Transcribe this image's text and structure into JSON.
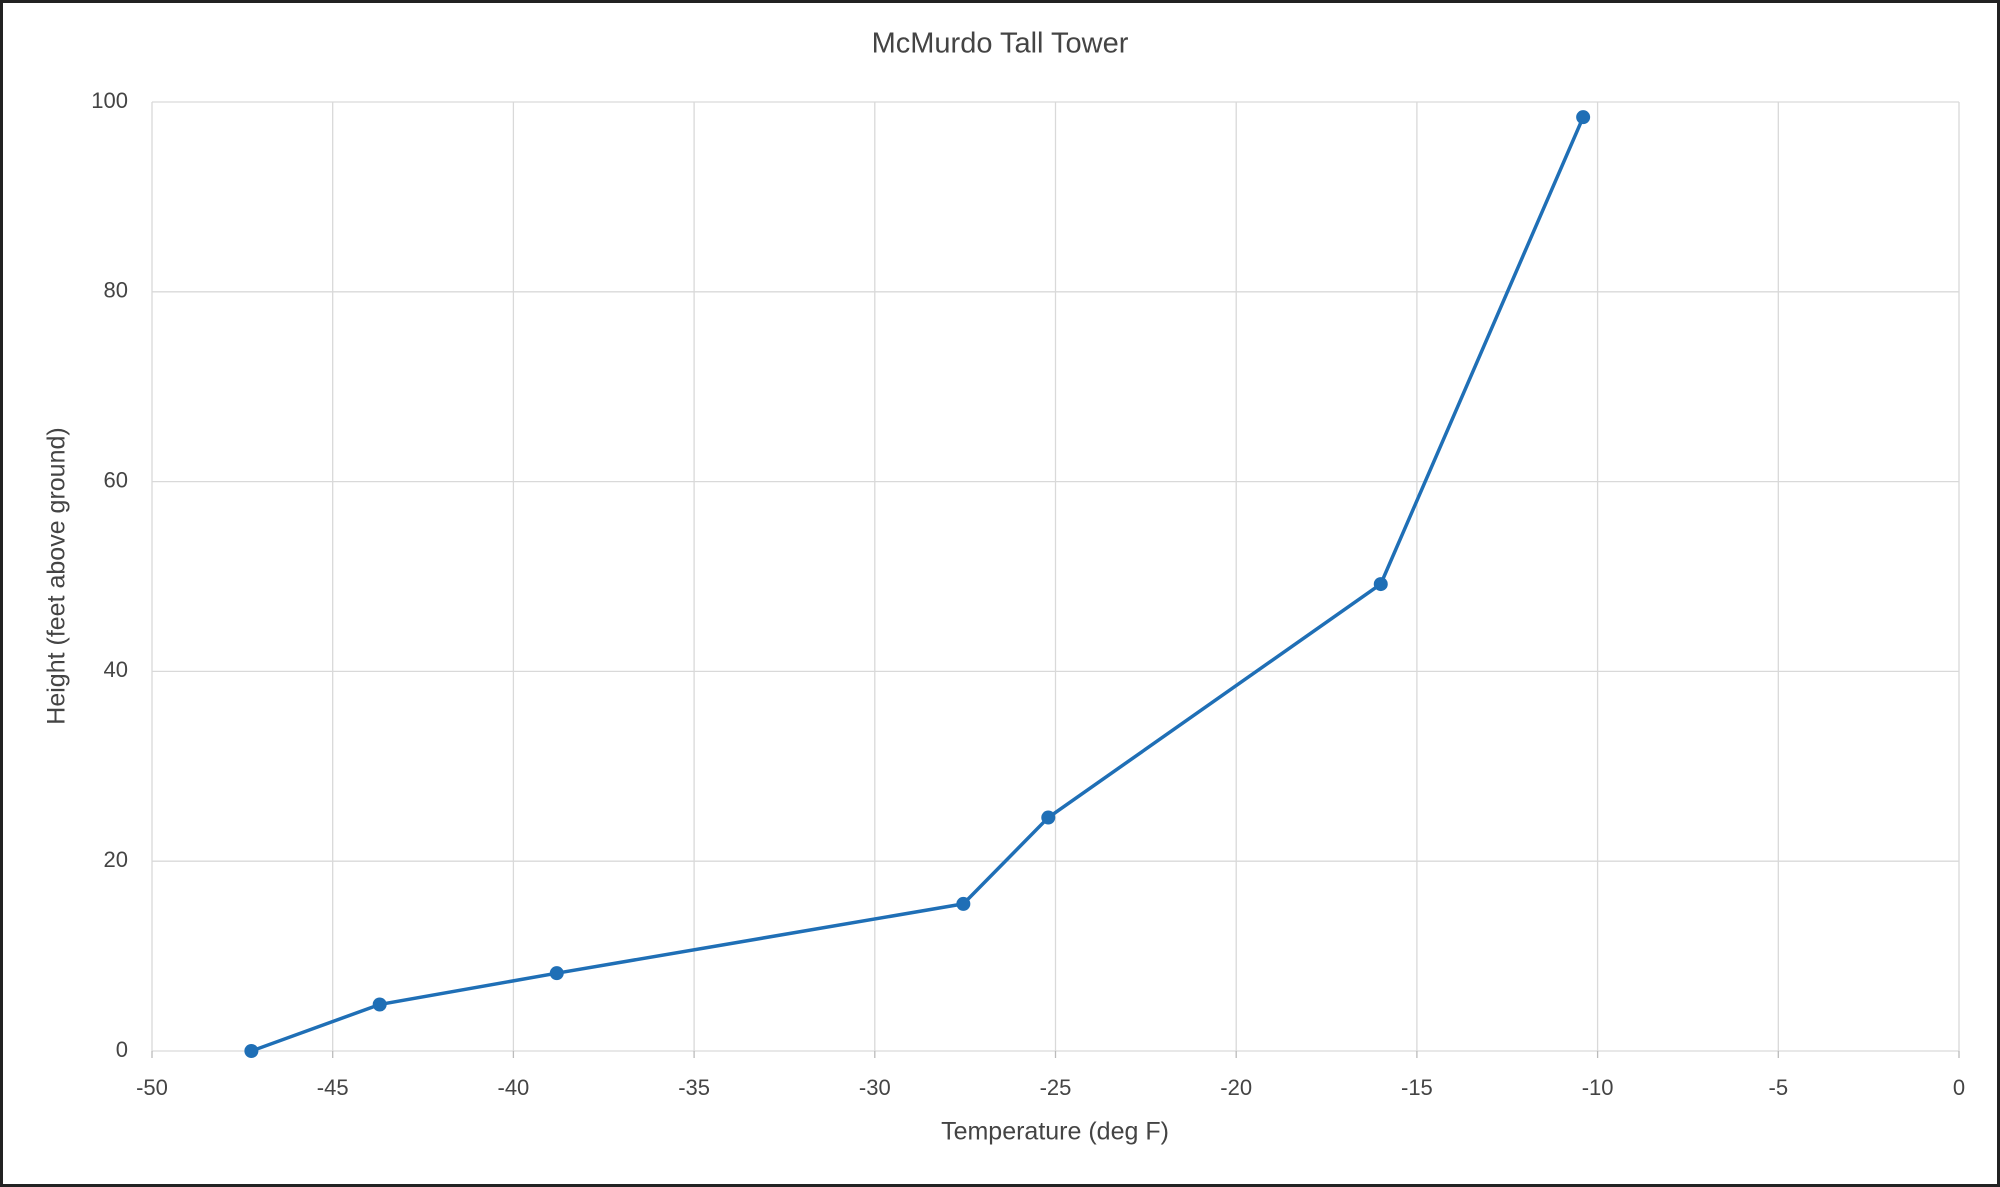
{
  "chart_data": {
    "type": "line",
    "title": "McMurdo Tall Tower",
    "x_label": "Temperature (deg F)",
    "y_label": "Height (feet above ground)",
    "x": [
      -47.25,
      -43.7,
      -38.8,
      -27.55,
      -25.2,
      -16.0,
      -10.4
    ],
    "values": [
      0,
      4.9,
      8.2,
      15.5,
      24.6,
      49.2,
      98.4
    ],
    "color": "#1f6fb6",
    "markers": true,
    "xlim": [
      -50,
      0
    ],
    "xticks": [
      -50,
      -45,
      -40,
      -35,
      -30,
      -25,
      -20,
      -15,
      -10,
      -5,
      0
    ],
    "ylim": [
      0,
      100
    ],
    "yticks": [
      0,
      20,
      40,
      60,
      80,
      100
    ],
    "grid": true
  }
}
